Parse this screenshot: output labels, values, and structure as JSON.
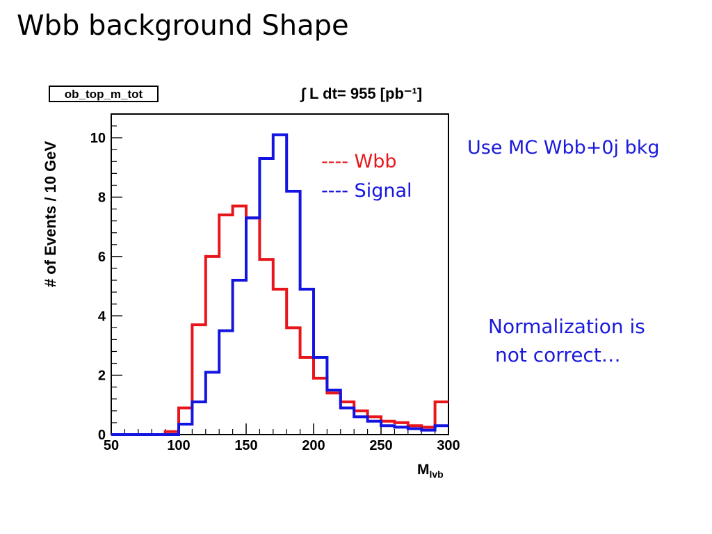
{
  "slide": {
    "title": "Wbb background Shape"
  },
  "notes": {
    "mc": "Use MC Wbb+0j bkg",
    "normalization_line1": "Normalization is",
    "normalization_line2": "not correct…"
  },
  "colors": {
    "wbb": "#e8161b",
    "signal": "#1414e0",
    "note_text": "#1a1adb"
  },
  "chart_data": {
    "type": "line",
    "histogram_name": "ob_top_m_tot",
    "luminosity_label": "∫ L dt= 955 [pb⁻¹]",
    "xlabel": "M_lvb",
    "xlabel_main": "M",
    "xlabel_sub": "lvb",
    "ylabel": "# of Events / 10 GeV",
    "xlim": [
      50,
      300
    ],
    "ylim": [
      0,
      10.8
    ],
    "x_ticks": [
      50,
      100,
      150,
      200,
      250,
      300
    ],
    "x_tick_labels": [
      "50",
      "100",
      "150",
      "200",
      "250",
      "300"
    ],
    "y_ticks": [
      0,
      2,
      4,
      6,
      8,
      10
    ],
    "y_tick_labels": [
      "0",
      "2",
      "4",
      "6",
      "8",
      "10"
    ],
    "bin_edges": [
      50,
      60,
      70,
      80,
      90,
      100,
      110,
      120,
      130,
      140,
      150,
      160,
      170,
      180,
      190,
      200,
      210,
      220,
      230,
      240,
      250,
      260,
      270,
      280,
      290,
      300
    ],
    "legend": {
      "placement": "top-right",
      "entries": [
        "---- Wbb",
        "---- Signal"
      ]
    },
    "series": [
      {
        "name": "Wbb",
        "values": [
          0,
          0,
          0,
          0,
          0.1,
          0.9,
          3.7,
          6.0,
          7.4,
          7.7,
          7.3,
          5.9,
          4.9,
          3.6,
          2.6,
          1.9,
          1.4,
          1.1,
          0.8,
          0.6,
          0.45,
          0.4,
          0.3,
          0.25,
          1.1
        ]
      },
      {
        "name": "Signal",
        "values": [
          0,
          0,
          0,
          0,
          0,
          0.35,
          1.1,
          2.1,
          3.5,
          5.2,
          7.3,
          9.3,
          10.1,
          8.2,
          4.9,
          2.6,
          1.5,
          0.9,
          0.6,
          0.45,
          0.3,
          0.25,
          0.2,
          0.15,
          0.3
        ]
      }
    ]
  }
}
